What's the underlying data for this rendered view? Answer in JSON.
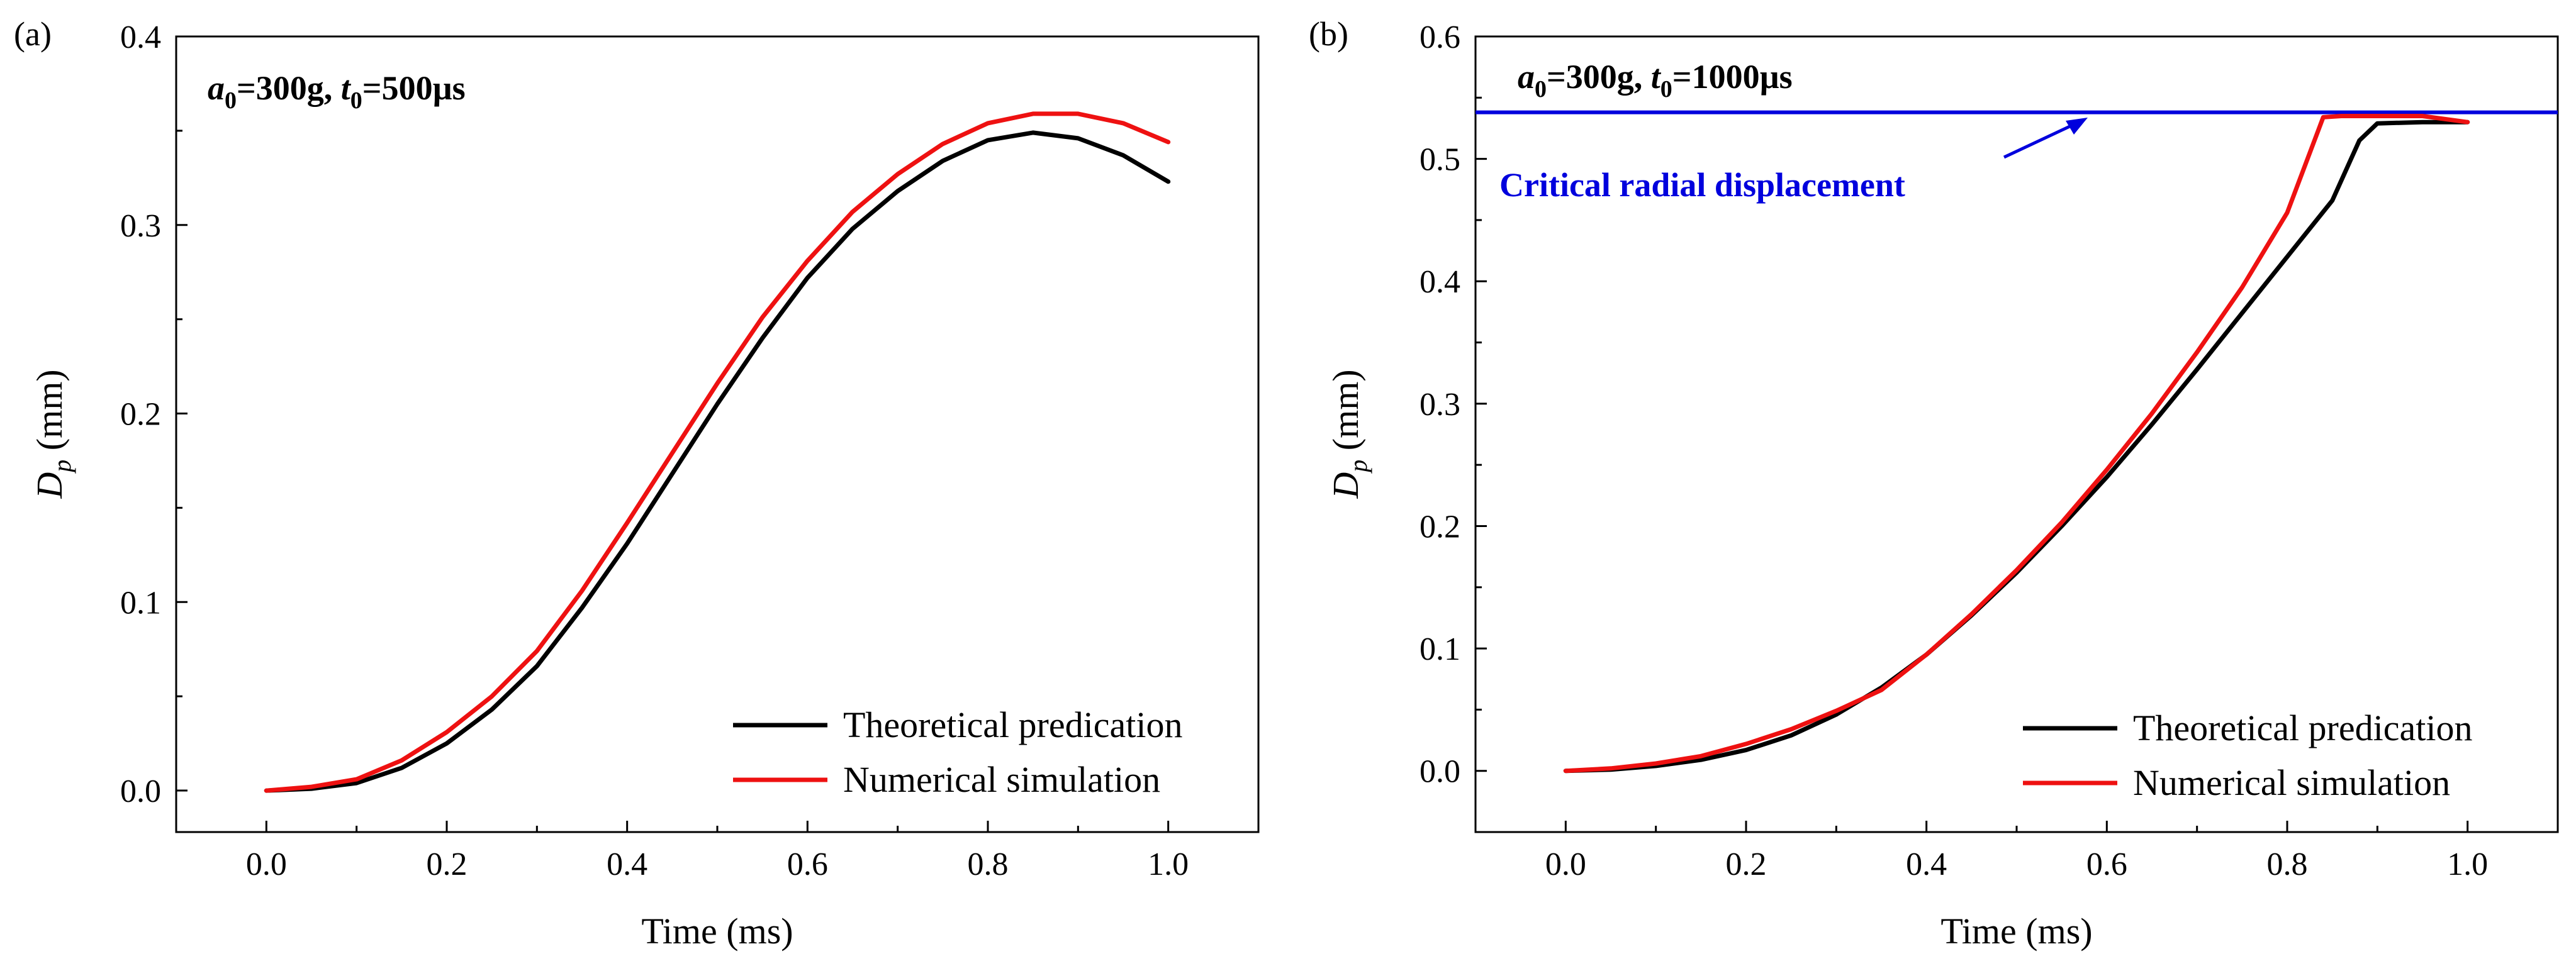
{
  "chart_data": [
    {
      "type": "line",
      "panel_label": "(a)",
      "annotation": {
        "a_sym": "a",
        "a_sub": "0",
        "a_val": "=300g, ",
        "t_sym": "t",
        "t_sub": "0",
        "t_val": "=500µs"
      },
      "xlabel": "Time (ms)",
      "ylabel": {
        "sym": "D",
        "sub": "p",
        "unit": " (mm)"
      },
      "xlim": [
        -0.1,
        1.1
      ],
      "ylim": [
        -0.022,
        0.4
      ],
      "xticks": [
        0.0,
        0.2,
        0.4,
        0.6,
        0.8,
        1.0
      ],
      "xtick_labels": [
        "0.0",
        "0.2",
        "0.4",
        "0.6",
        "0.8",
        "1.0"
      ],
      "yticks": [
        0.0,
        0.1,
        0.2,
        0.3,
        0.4
      ],
      "ytick_labels": [
        "0.0",
        "0.1",
        "0.2",
        "0.3",
        "0.4"
      ],
      "legend_position": "bottom-right",
      "series": [
        {
          "name": "Theoretical predication",
          "color": "#000000",
          "x": [
            0,
            0.05,
            0.1,
            0.15,
            0.2,
            0.25,
            0.3,
            0.35,
            0.4,
            0.45,
            0.5,
            0.55,
            0.6,
            0.65,
            0.7,
            0.75,
            0.8,
            0.85,
            0.9,
            0.95,
            1.0
          ],
          "y": [
            0,
            0.001,
            0.004,
            0.012,
            0.025,
            0.043,
            0.066,
            0.097,
            0.131,
            0.168,
            0.205,
            0.24,
            0.272,
            0.298,
            0.318,
            0.334,
            0.345,
            0.349,
            0.346,
            0.337,
            0.323
          ]
        },
        {
          "name": "Numerical simulation",
          "color": "#ee1111",
          "x": [
            0,
            0.05,
            0.1,
            0.15,
            0.2,
            0.25,
            0.3,
            0.35,
            0.4,
            0.45,
            0.5,
            0.55,
            0.6,
            0.65,
            0.7,
            0.75,
            0.8,
            0.85,
            0.9,
            0.95,
            1.0
          ],
          "y": [
            0,
            0.002,
            0.006,
            0.016,
            0.031,
            0.05,
            0.074,
            0.106,
            0.142,
            0.179,
            0.216,
            0.251,
            0.281,
            0.307,
            0.327,
            0.343,
            0.354,
            0.359,
            0.359,
            0.354,
            0.344
          ]
        }
      ]
    },
    {
      "type": "line",
      "panel_label": "(b)",
      "annotation": {
        "a_sym": "a",
        "a_sub": "0",
        "a_val": "=300g, ",
        "t_sym": "t",
        "t_sub": "0",
        "t_val": "=1000µs"
      },
      "xlabel": "Time (ms)",
      "ylabel": {
        "sym": "D",
        "sub": "p",
        "unit": " (mm)"
      },
      "xlim": [
        -0.1,
        1.1
      ],
      "ylim": [
        -0.05,
        0.6
      ],
      "xticks": [
        0.0,
        0.2,
        0.4,
        0.6,
        0.8,
        1.0
      ],
      "xtick_labels": [
        "0.0",
        "0.2",
        "0.4",
        "0.6",
        "0.8",
        "1.0"
      ],
      "yticks": [
        0.0,
        0.1,
        0.2,
        0.3,
        0.4,
        0.5,
        0.6
      ],
      "ytick_labels": [
        "0.0",
        "0.1",
        "0.2",
        "0.3",
        "0.4",
        "0.5",
        "0.6"
      ],
      "legend_position": "bottom-right",
      "reference_line": {
        "y": 0.538,
        "color": "#0000dd",
        "label": "Critical radial displacement"
      },
      "series": [
        {
          "name": "Theoretical predication",
          "color": "#000000",
          "x": [
            0,
            0.05,
            0.1,
            0.15,
            0.2,
            0.25,
            0.3,
            0.35,
            0.4,
            0.45,
            0.5,
            0.55,
            0.6,
            0.65,
            0.7,
            0.75,
            0.8,
            0.85,
            0.88,
            0.9,
            0.95,
            1.0
          ],
          "y": [
            0,
            0.001,
            0.004,
            0.009,
            0.017,
            0.029,
            0.046,
            0.068,
            0.095,
            0.127,
            0.162,
            0.2,
            0.24,
            0.283,
            0.328,
            0.374,
            0.42,
            0.466,
            0.515,
            0.529,
            0.53,
            0.53
          ]
        },
        {
          "name": "Numerical simulation",
          "color": "#ee1111",
          "x": [
            0,
            0.05,
            0.1,
            0.15,
            0.2,
            0.25,
            0.3,
            0.35,
            0.4,
            0.45,
            0.5,
            0.55,
            0.6,
            0.65,
            0.7,
            0.75,
            0.8,
            0.84,
            0.86,
            0.9,
            0.95,
            1.0
          ],
          "y": [
            0,
            0.002,
            0.006,
            0.012,
            0.022,
            0.034,
            0.049,
            0.066,
            0.095,
            0.128,
            0.164,
            0.203,
            0.246,
            0.292,
            0.342,
            0.395,
            0.456,
            0.534,
            0.535,
            0.535,
            0.535,
            0.53
          ]
        }
      ]
    }
  ]
}
